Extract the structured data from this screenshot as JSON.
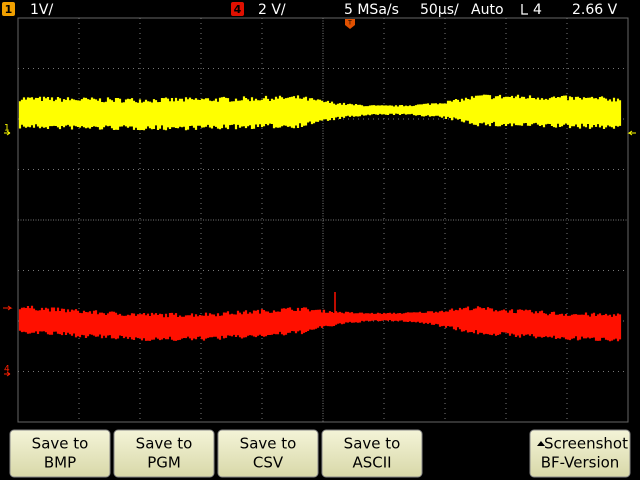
{
  "status": {
    "ch1_label": "1",
    "ch1_scale": "1V/",
    "ch4_label": "4",
    "ch4_scale": "2 V/",
    "sample_rate": "5 MSa/s",
    "timebase": "50µs/",
    "mode": "Auto",
    "trigger_source": "4",
    "trigger_level": "2.66 V"
  },
  "markers": {
    "trigger": "T",
    "ch1": "1",
    "ch4": "4"
  },
  "softkeys": [
    {
      "line1": "Save to",
      "line2": "BMP"
    },
    {
      "line1": "Save to",
      "line2": "PGM"
    },
    {
      "line1": "Save to",
      "line2": "CSV"
    },
    {
      "line1": "Save to",
      "line2": "ASCII"
    },
    {
      "line1": "Screenshot",
      "line2": "BF-Version"
    }
  ]
}
